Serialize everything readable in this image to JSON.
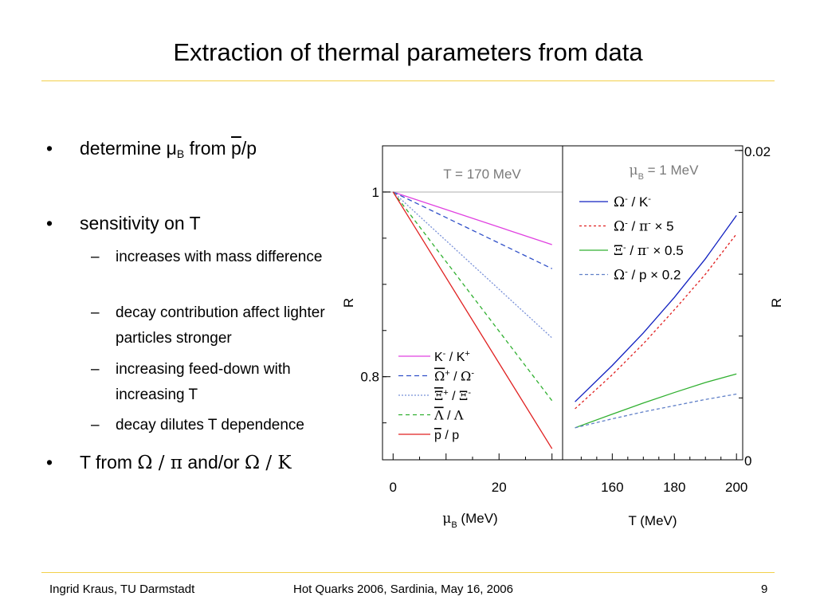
{
  "title": "Extraction of thermal parameters from data",
  "bullets": [
    {
      "parts": [
        "determine μ",
        "B",
        " from ",
        "p",
        "/p"
      ]
    },
    {
      "parts": [
        "sensitivity on T"
      ]
    },
    {
      "parts": [
        "T from ",
        "Ω / π",
        " and/or ",
        "Ω / K"
      ]
    }
  ],
  "subbullets": [
    "increases with mass difference",
    "decay contribution affect lighter particles stronger",
    "increasing feed-down with increasing T",
    "decay dilutes T dependence"
  ],
  "footer": {
    "author": "Ingrid Kraus, TU Darmstadt",
    "event": "Hot Quarks 2006, Sardinia, May 16, 2006",
    "page": "9"
  },
  "chart_data": [
    {
      "type": "line",
      "annotation": "T = 170 MeV",
      "xlabel": "μB (MeV)",
      "ylabel": "R",
      "xlim": [
        -2,
        32
      ],
      "ylim": [
        0.71,
        1.05
      ],
      "xticks": [
        0,
        20
      ],
      "yticks": [
        0.8,
        1
      ],
      "reference_line": 1,
      "legend_position": "lower-right",
      "series": [
        {
          "name": "K- / K+",
          "color": "#e040e0",
          "dash": "",
          "x": [
            0,
            30
          ],
          "y": [
            1.0,
            0.943
          ]
        },
        {
          "name": "Ω+ / Ω-",
          "color": "#3050c8",
          "dash": "6,4",
          "x": [
            0,
            30
          ],
          "y": [
            1.0,
            0.917
          ]
        },
        {
          "name": "Ξ+ / Ξ-",
          "color": "#7890d8",
          "dash": "2,2",
          "x": [
            0,
            30
          ],
          "y": [
            1.0,
            0.842
          ]
        },
        {
          "name": "Λ / Λ",
          "color": "#30b030",
          "dash": "5,4",
          "x": [
            0,
            30
          ],
          "y": [
            1.0,
            0.774
          ]
        },
        {
          "name": "p / p",
          "color": "#e02020",
          "dash": "",
          "x": [
            0,
            30
          ],
          "y": [
            1.0,
            0.722
          ]
        }
      ],
      "legend_labels": [
        {
          "a": "K",
          "a_sup": "-",
          "b": "K",
          "b_sup": "+"
        },
        {
          "a": "Ω",
          "a_sup": "+",
          "b": "Ω",
          "b_sup": "-"
        },
        {
          "a": "Ξ",
          "a_sup": "+",
          "b": "Ξ",
          "b_sup": "-"
        },
        {
          "a": "Λ",
          "a_sup": "",
          "b": "Λ",
          "b_sup": ""
        },
        {
          "a": "p",
          "a_sup": "",
          "b": "p",
          "b_sup": ""
        }
      ]
    },
    {
      "type": "line",
      "annotation": "μB = 1 MeV",
      "xlabel": "T (MeV)",
      "ylabel": "R",
      "xlim": [
        144,
        202
      ],
      "ylim": [
        0,
        0.0203
      ],
      "xticks": [
        160,
        180,
        200
      ],
      "yticks": [
        0,
        0.02
      ],
      "legend_position": "upper-left",
      "series": [
        {
          "name": "Ω- / K-",
          "color": "#1020c0",
          "dash": "",
          "x": [
            148,
            160,
            170,
            180,
            190,
            200
          ],
          "y": [
            0.00375,
            0.0061,
            0.0082,
            0.0105,
            0.013,
            0.0158
          ]
        },
        {
          "name": "Ω- / π- × 5",
          "color": "#e02020",
          "dash": "3,3",
          "x": [
            148,
            160,
            170,
            180,
            190,
            200
          ],
          "y": [
            0.0033,
            0.0055,
            0.0075,
            0.0097,
            0.012,
            0.0146
          ]
        },
        {
          "name": "Ξ- / π- × 0.5",
          "color": "#30b030",
          "dash": "",
          "x": [
            148,
            160,
            170,
            180,
            190,
            200
          ],
          "y": [
            0.00207,
            0.00295,
            0.00367,
            0.00435,
            0.005,
            0.00555
          ]
        },
        {
          "name": "Ω- / p × 0.2",
          "color": "#6080c8",
          "dash": "4,3",
          "x": [
            148,
            160,
            170,
            180,
            190,
            200
          ],
          "y": [
            0.00207,
            0.00265,
            0.0031,
            0.0035,
            0.0039,
            0.00425
          ]
        }
      ],
      "legend_labels": [
        {
          "a": "Ω",
          "a_sup": "-",
          "b": "K",
          "b_sup": "-",
          "tail": ""
        },
        {
          "a": "Ω",
          "a_sup": "-",
          "b": "π",
          "b_sup": "-",
          "tail": " × 5"
        },
        {
          "a": "Ξ",
          "a_sup": "-",
          "b": "π",
          "b_sup": "-",
          "tail": " × 0.5"
        },
        {
          "a": "Ω",
          "a_sup": "-",
          "b": "p",
          "b_sup": "",
          "tail": " × 0.2"
        }
      ]
    }
  ]
}
